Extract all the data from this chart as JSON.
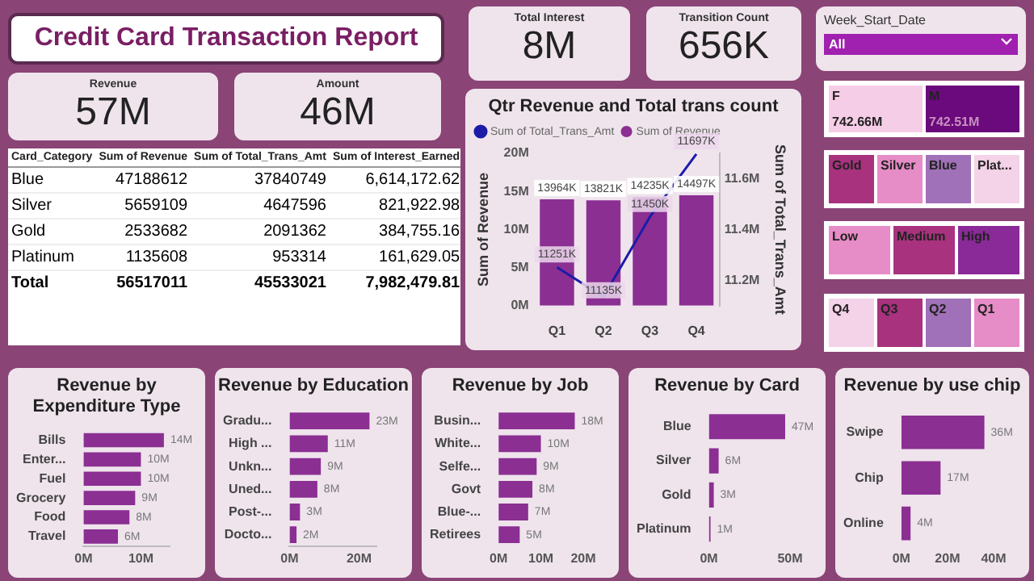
{
  "chart_data": [
    {
      "type": "other",
      "title": "Credit Card Transaction Report"
    },
    {
      "type": "other",
      "title": "Revenue",
      "annotations": [
        "57M"
      ]
    },
    {
      "type": "other",
      "title": "Amount",
      "annotations": [
        "46M"
      ]
    },
    {
      "type": "other",
      "title": "Total Interest",
      "annotations": [
        "8M"
      ]
    },
    {
      "type": "other",
      "title": "Transition Count",
      "annotations": [
        "656K"
      ]
    },
    {
      "type": "other",
      "title": "Week_Start_Date",
      "annotations": [
        "All"
      ]
    },
    {
      "type": "other",
      "xlabel": "Card_Category",
      "categories": [
        "Blue",
        "Silver",
        "Gold",
        "Platinum",
        "Total"
      ],
      "series": [
        {
          "name": "Sum of Revenue",
          "values": [
            47188612,
            5659109,
            2533682,
            1135608,
            56517011
          ],
          "value_labels": [
            "47188612",
            "5659109",
            "2533682",
            "1135608",
            "56517011"
          ]
        },
        {
          "name": "Sum of Total_Trans_Amt",
          "values": [
            37840749,
            4647596,
            2091362,
            953314,
            45533021
          ],
          "value_labels": [
            "37840749",
            "4647596",
            "2091362",
            "953314",
            "45533021"
          ]
        },
        {
          "name": "Sum of Interest_Earned",
          "values": [
            6614172.62,
            821922.98,
            384755.16,
            161629.05,
            7982479.81
          ],
          "value_labels": [
            "6,614,172.62",
            "821,922.98",
            "384,755.16",
            "161,629.05",
            "7,982,479.81"
          ]
        }
      ]
    },
    {
      "type": "bar",
      "title": "Qtr Revenue and Total trans count",
      "categories": [
        "Q1",
        "Q2",
        "Q3",
        "Q4"
      ],
      "ylabel": "Sum of Revenue",
      "y2label": "Sum of Total_Trans_Amt",
      "legend": "top left",
      "ylim": [
        0,
        20000000
      ],
      "yticks": [
        {
          "value": 0,
          "label": "0M"
        },
        {
          "value": 5000000,
          "label": "5M"
        },
        {
          "value": 10000000,
          "label": "10M"
        },
        {
          "value": 15000000,
          "label": "15M"
        },
        {
          "value": 20000000,
          "label": "20M"
        }
      ],
      "y2lim": [
        11100000,
        11700000
      ],
      "y2ticks": [
        {
          "value": 11200000,
          "label": "11.2M"
        },
        {
          "value": 11400000,
          "label": "11.4M"
        },
        {
          "value": 11600000,
          "label": "11.6M"
        }
      ],
      "series": [
        {
          "name": "Sum of Revenue",
          "type": "bar",
          "color": "#8b2f93",
          "values": [
            13964000,
            13821000,
            14235000,
            14497000
          ],
          "value_labels": [
            "13964K",
            "13821K",
            "14235K",
            "14497K"
          ]
        },
        {
          "name": "Sum of Total_Trans_Amt",
          "type": "line",
          "axis": "y2",
          "color": "#1c1ca8",
          "values": [
            11251000,
            11135000,
            11450000,
            11697000
          ],
          "value_labels": [
            "11251K",
            "11135K",
            "11450K",
            "11697K"
          ]
        }
      ]
    },
    {
      "type": "other",
      "categories": [
        "F",
        "M"
      ],
      "values": [
        742.66,
        742.51
      ],
      "value_labels": [
        "742.66M",
        "742.51M"
      ],
      "colors": [
        "#f6cde6",
        "#6a0a7c"
      ]
    },
    {
      "type": "other",
      "categories": [
        "Gold",
        "Silver",
        "Blue",
        "Plat..."
      ],
      "colors": [
        "#a8327e",
        "#e68cc6",
        "#a070b8",
        "#f4d2e8"
      ]
    },
    {
      "type": "other",
      "categories": [
        "Low",
        "Medium",
        "High"
      ],
      "colors": [
        "#e68cc6",
        "#a8327e",
        "#8a2a98"
      ]
    },
    {
      "type": "other",
      "categories": [
        "Q4",
        "Q3",
        "Q2",
        "Q1"
      ],
      "colors": [
        "#f4d2e8",
        "#a8327e",
        "#a070b8",
        "#e68cc6"
      ]
    },
    {
      "type": "bar",
      "orientation": "horizontal",
      "title": "Revenue by Expenditure Type",
      "categories": [
        "Bills",
        "Enter...",
        "Fuel",
        "Grocery",
        "Food",
        "Travel"
      ],
      "values": [
        14,
        10,
        10,
        9,
        8,
        6
      ],
      "value_labels": [
        "14M",
        "10M",
        "10M",
        "9M",
        "8M",
        "6M"
      ],
      "color": "#8b2f93",
      "xlim": [
        0,
        15
      ],
      "xticks": [
        {
          "value": 0,
          "label": "0M"
        },
        {
          "value": 10,
          "label": "10M"
        }
      ]
    },
    {
      "type": "bar",
      "orientation": "horizontal",
      "title": "Revenue by Education",
      "categories": [
        "Gradu...",
        "High ...",
        "Unkn...",
        "Uned...",
        "Post-...",
        "Docto..."
      ],
      "values": [
        23,
        11,
        9,
        8,
        3,
        2
      ],
      "value_labels": [
        "23M",
        "11M",
        "9M",
        "8M",
        "3M",
        "2M"
      ],
      "color": "#8b2f93",
      "xlim": [
        0,
        25
      ],
      "xticks": [
        {
          "value": 0,
          "label": "0M"
        },
        {
          "value": 20,
          "label": "20M"
        }
      ]
    },
    {
      "type": "bar",
      "orientation": "horizontal",
      "title": "Revenue by Job",
      "categories": [
        "Busin...",
        "White...",
        "Selfe...",
        "Govt",
        "Blue-...",
        "Retirees"
      ],
      "values": [
        18,
        10,
        9,
        8,
        7,
        5
      ],
      "value_labels": [
        "18M",
        "10M",
        "9M",
        "8M",
        "7M",
        "5M"
      ],
      "color": "#8b2f93",
      "xlim": [
        0,
        20
      ],
      "xticks": [
        {
          "value": 0,
          "label": "0M"
        },
        {
          "value": 10,
          "label": "10M"
        },
        {
          "value": 20,
          "label": "20M"
        }
      ]
    },
    {
      "type": "bar",
      "orientation": "horizontal",
      "title": "Revenue by Card",
      "categories": [
        "Blue",
        "Silver",
        "Gold",
        "Platinum"
      ],
      "values": [
        47,
        6,
        3,
        1
      ],
      "value_labels": [
        "47M",
        "6M",
        "3M",
        "1M"
      ],
      "color": "#8b2f93",
      "xlim": [
        0,
        50
      ],
      "xticks": [
        {
          "value": 0,
          "label": "0M"
        },
        {
          "value": 50,
          "label": "50M"
        }
      ]
    },
    {
      "type": "bar",
      "orientation": "horizontal",
      "title": "Revenue by use chip",
      "categories": [
        "Swipe",
        "Chip",
        "Online"
      ],
      "values": [
        36,
        17,
        4
      ],
      "value_labels": [
        "36M",
        "17M",
        "4M"
      ],
      "color": "#8b2f93",
      "xlim": [
        0,
        40
      ],
      "xticks": [
        {
          "value": 0,
          "label": "0M"
        },
        {
          "value": 20,
          "label": "20M"
        },
        {
          "value": 40,
          "label": "40M"
        }
      ]
    }
  ]
}
